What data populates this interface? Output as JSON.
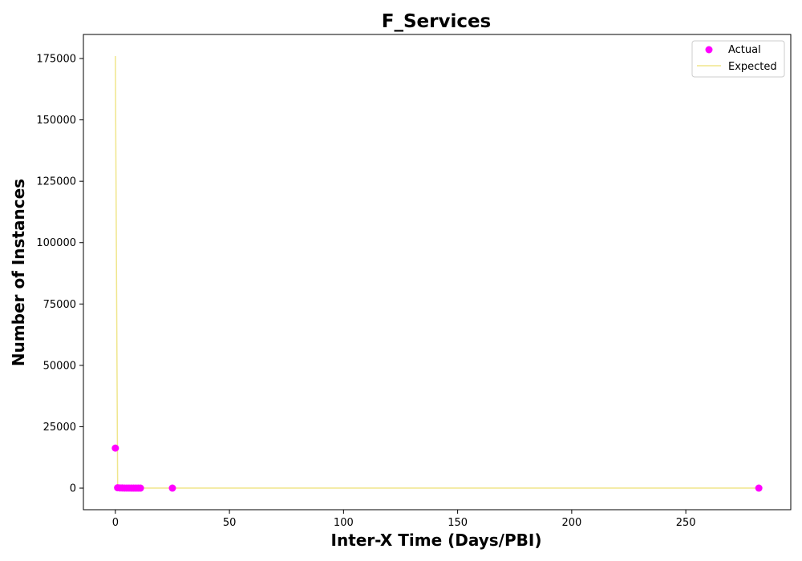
{
  "chart_data": {
    "type": "scatter",
    "title": "F_Services",
    "xlabel": "Inter-X Time (Days/PBI)",
    "ylabel": "Number of Instances",
    "xlim": [
      -14,
      296
    ],
    "ylim": [
      -8800,
      184800
    ],
    "x_ticks": [
      0,
      50,
      100,
      150,
      200,
      250
    ],
    "y_ticks": [
      0,
      25000,
      50000,
      75000,
      100000,
      125000,
      150000,
      175000
    ],
    "grid": false,
    "legend": "top-right",
    "series": [
      {
        "name": "Actual",
        "kind": "scatter",
        "color": "#ff00ff",
        "points": [
          [
            0,
            16300
          ],
          [
            1,
            150
          ],
          [
            2,
            60
          ],
          [
            3,
            40
          ],
          [
            4,
            30
          ],
          [
            5,
            20
          ],
          [
            6,
            15
          ],
          [
            7,
            10
          ],
          [
            8,
            10
          ],
          [
            9,
            8
          ],
          [
            10,
            5
          ],
          [
            11,
            5
          ],
          [
            25,
            3
          ],
          [
            282,
            2
          ]
        ]
      },
      {
        "name": "Expected",
        "kind": "line",
        "color": "#f0e68c",
        "points": [
          [
            0,
            176000
          ],
          [
            1,
            900
          ],
          [
            2,
            15
          ],
          [
            3,
            2
          ],
          [
            5,
            0
          ],
          [
            25,
            0
          ],
          [
            282,
            0
          ]
        ]
      }
    ]
  }
}
